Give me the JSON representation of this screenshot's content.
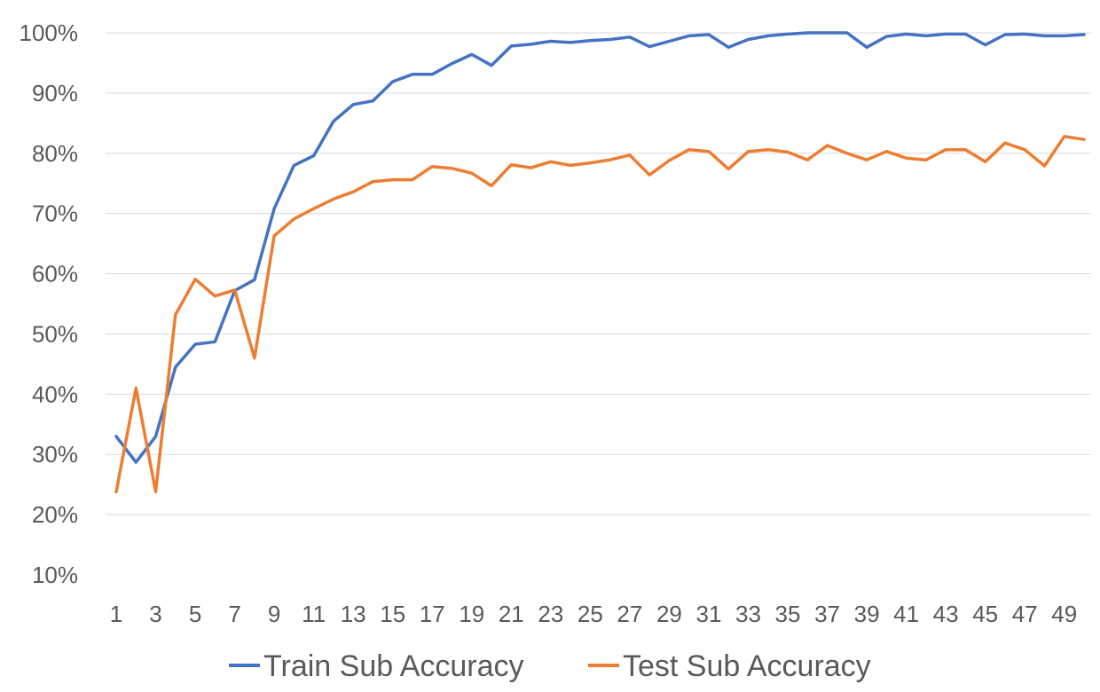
{
  "chart_data": {
    "type": "line",
    "title": "",
    "xlabel": "",
    "ylabel": "",
    "x": [
      1,
      2,
      3,
      4,
      5,
      6,
      7,
      8,
      9,
      10,
      11,
      12,
      13,
      14,
      15,
      16,
      17,
      18,
      19,
      20,
      21,
      22,
      23,
      24,
      25,
      26,
      27,
      28,
      29,
      30,
      31,
      32,
      33,
      34,
      35,
      36,
      37,
      38,
      39,
      40,
      41,
      42,
      43,
      44,
      45,
      46,
      47,
      48,
      49,
      50
    ],
    "x_tick_labels": [
      "1",
      "3",
      "5",
      "7",
      "9",
      "11",
      "13",
      "15",
      "17",
      "19",
      "21",
      "23",
      "25",
      "27",
      "29",
      "31",
      "33",
      "35",
      "37",
      "39",
      "41",
      "43",
      "45",
      "47",
      "49"
    ],
    "x_tick_values": [
      1,
      3,
      5,
      7,
      9,
      11,
      13,
      15,
      17,
      19,
      21,
      23,
      25,
      27,
      29,
      31,
      33,
      35,
      37,
      39,
      41,
      43,
      45,
      47,
      49
    ],
    "y_tick_labels": [
      "10%",
      "20%",
      "30%",
      "40%",
      "50%",
      "60%",
      "70%",
      "80%",
      "90%",
      "100%"
    ],
    "y_tick_values": [
      10,
      20,
      30,
      40,
      50,
      60,
      70,
      80,
      90,
      100
    ],
    "ylim": [
      10,
      100
    ],
    "grid": "horizontal",
    "legend_position": "bottom",
    "series": [
      {
        "name": "Train Sub Accuracy",
        "color": "#4472c4",
        "values": [
          33,
          28.7,
          33,
          44.5,
          48.3,
          48.7,
          57.2,
          59,
          70.8,
          78,
          79.6,
          85.3,
          88.1,
          88.7,
          91.9,
          93.1,
          93.1,
          94.9,
          96.4,
          94.6,
          97.8,
          98.1,
          98.6,
          98.4,
          98.7,
          98.9,
          99.3,
          97.7,
          98.6,
          99.5,
          99.7,
          97.6,
          98.9,
          99.5,
          99.8,
          100,
          100,
          100,
          97.6,
          99.4,
          99.8,
          99.5,
          99.8,
          99.8,
          98,
          99.7,
          99.8,
          99.5,
          99.5,
          99.7
        ]
      },
      {
        "name": "Test Sub Accuracy",
        "color": "#ed7d31",
        "values": [
          23.8,
          41,
          23.8,
          53.2,
          59.1,
          56.3,
          57.3,
          46,
          66.3,
          69.1,
          70.8,
          72.4,
          73.6,
          75.3,
          75.6,
          75.6,
          77.8,
          77.5,
          76.7,
          74.6,
          78.1,
          77.6,
          78.6,
          78,
          78.4,
          78.9,
          79.7,
          76.4,
          78.8,
          80.6,
          80.3,
          77.4,
          80.3,
          80.6,
          80.2,
          78.9,
          81.3,
          80,
          78.9,
          80.3,
          79.2,
          78.9,
          80.6,
          80.6,
          78.6,
          81.7,
          80.6,
          77.9,
          82.8,
          82.3
        ]
      }
    ]
  }
}
